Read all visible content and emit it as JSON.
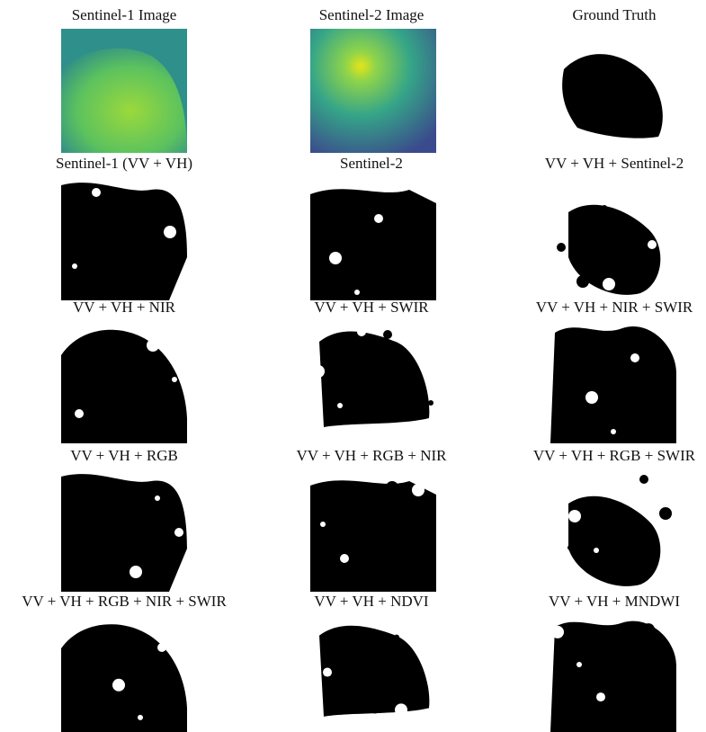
{
  "panels": [
    {
      "label": "Sentinel-1 Image"
    },
    {
      "label": "Sentinel-2 Image"
    },
    {
      "label": "Ground Truth"
    },
    {
      "label": "Sentinel-1 (VV + VH)"
    },
    {
      "label": "Sentinel-2"
    },
    {
      "label": "VV + VH + Sentinel-2"
    },
    {
      "label": "VV + VH + NIR"
    },
    {
      "label": "VV + VH + SWIR"
    },
    {
      "label": "VV + VH + NIR + SWIR"
    },
    {
      "label": "VV + VH + RGB"
    },
    {
      "label": "VV + VH + RGB + NIR"
    },
    {
      "label": "VV + VH + RGB + SWIR"
    },
    {
      "label": "VV + VH + RGB + NIR + SWIR"
    },
    {
      "label": "VV + VH + NDVI"
    },
    {
      "label": "VV + VH + MNDWI"
    }
  ]
}
